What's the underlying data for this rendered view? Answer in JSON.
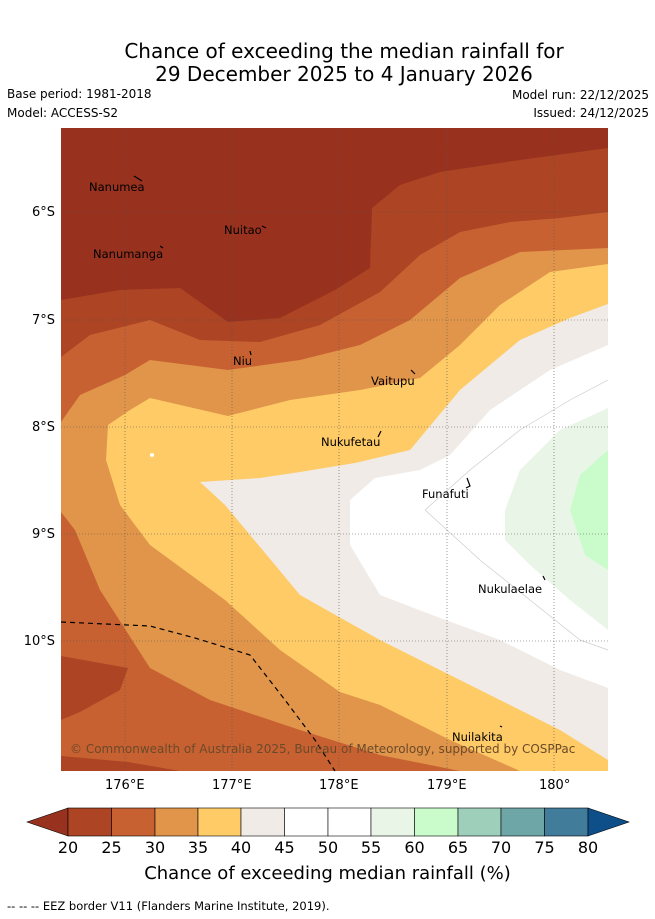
{
  "title": {
    "line1": "Chance of exceeding the median rainfall for",
    "line2": "29 December 2025 to 4 January 2026"
  },
  "meta": {
    "base_period": "Base period: 1981-2018",
    "model": "Model: ACCESS-S2",
    "model_run": "Model run: 22/12/2025",
    "issued": "Issued: 24/12/2025"
  },
  "axes": {
    "lat_labels": [
      "6°S",
      "7°S",
      "8°S",
      "9°S",
      "10°S"
    ],
    "lon_labels": [
      "176°E",
      "177°E",
      "178°E",
      "179°E",
      "180°"
    ]
  },
  "places": [
    "Nanumea",
    "Nuitao",
    "Nanumanga",
    "Niu",
    "Vaitupu",
    "Nukufetau",
    "Funafuti",
    "Nukulaelae",
    "Nuilakita"
  ],
  "credit": "© Commonwealth of Australia 2025, Bureau of Meteorology, supported by COSPPac",
  "colorbar": {
    "ticks": [
      "20",
      "25",
      "30",
      "35",
      "40",
      "45",
      "50",
      "55",
      "60",
      "65",
      "70",
      "75",
      "80"
    ],
    "title": "Chance of exceeding median rainfall (%)",
    "colors": {
      "below20": "#98321f",
      "20-25": "#ad4423",
      "25-30": "#c86131",
      "30-35": "#e0954a",
      "35-40": "#fecb67",
      "40-45": "#f0ebe6",
      "45-50": "#ffffff",
      "50-55": "#ffffff",
      "55-60": "#e9f5e6",
      "60-65": "#c9fcca",
      "65-70": "#9ecfbb",
      "70-75": "#6ea5a6",
      "75-80": "#427c9b",
      "above80": "#0e4f8a"
    }
  },
  "legend": {
    "eez_border": "-- -- -- EEZ border V11 (Flanders Marine Institute, 2019)."
  }
}
